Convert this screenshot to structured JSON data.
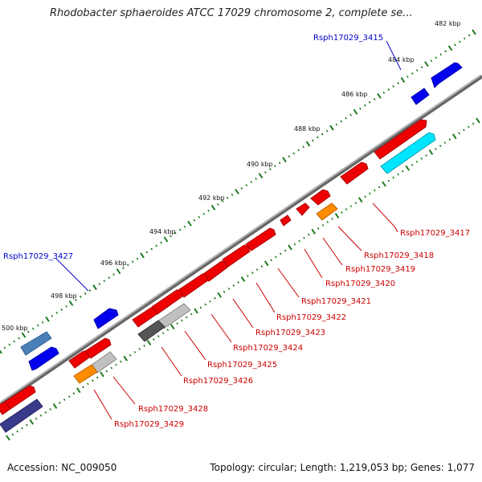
{
  "title": "Rhodobacter sphaeroides ATCC 17029 chromosome 2, complete se...",
  "footer": {
    "accession": "Accession: NC_009050",
    "summary": "Topology: circular; Length: 1,219,053 bp; Genes: 1,077"
  },
  "colors": {
    "backbone": "#8c8c8c",
    "tick": "#1e7a1e",
    "forward_gene": "#0000ee",
    "forward_gene_steel": "#4a80b8",
    "reverse_gene": "#ee0000",
    "reverse_gene_gray": "#c0c0c0",
    "reverse_gene_dark": "#555555",
    "orange_gene": "#ff8c00",
    "cyan_gene": "#00e5ff",
    "navy_gene": "#3a3a8a",
    "label_blue": "#0000cc",
    "label_red": "#cc0000"
  },
  "scale": {
    "labels": [
      "482 kbp",
      "484 kbp",
      "486 kbp",
      "488 kbp",
      "490 kbp",
      "492 kbp",
      "494 kbp",
      "496 kbp",
      "498 kbp",
      "500 kbp"
    ]
  },
  "forward_labels": [
    "Rsph17029_3415",
    "Rsph17029_3427"
  ],
  "reverse_labels": [
    "Rsph17029_3417",
    "Rsph17029_3418",
    "Rsph17029_3419",
    "Rsph17029_3420",
    "Rsph17029_3421",
    "Rsph17029_3422",
    "Rsph17029_3423",
    "Rsph17029_3424",
    "Rsph17029_3425",
    "Rsph17029_3426",
    "Rsph17029_3428",
    "Rsph17029_3429"
  ]
}
